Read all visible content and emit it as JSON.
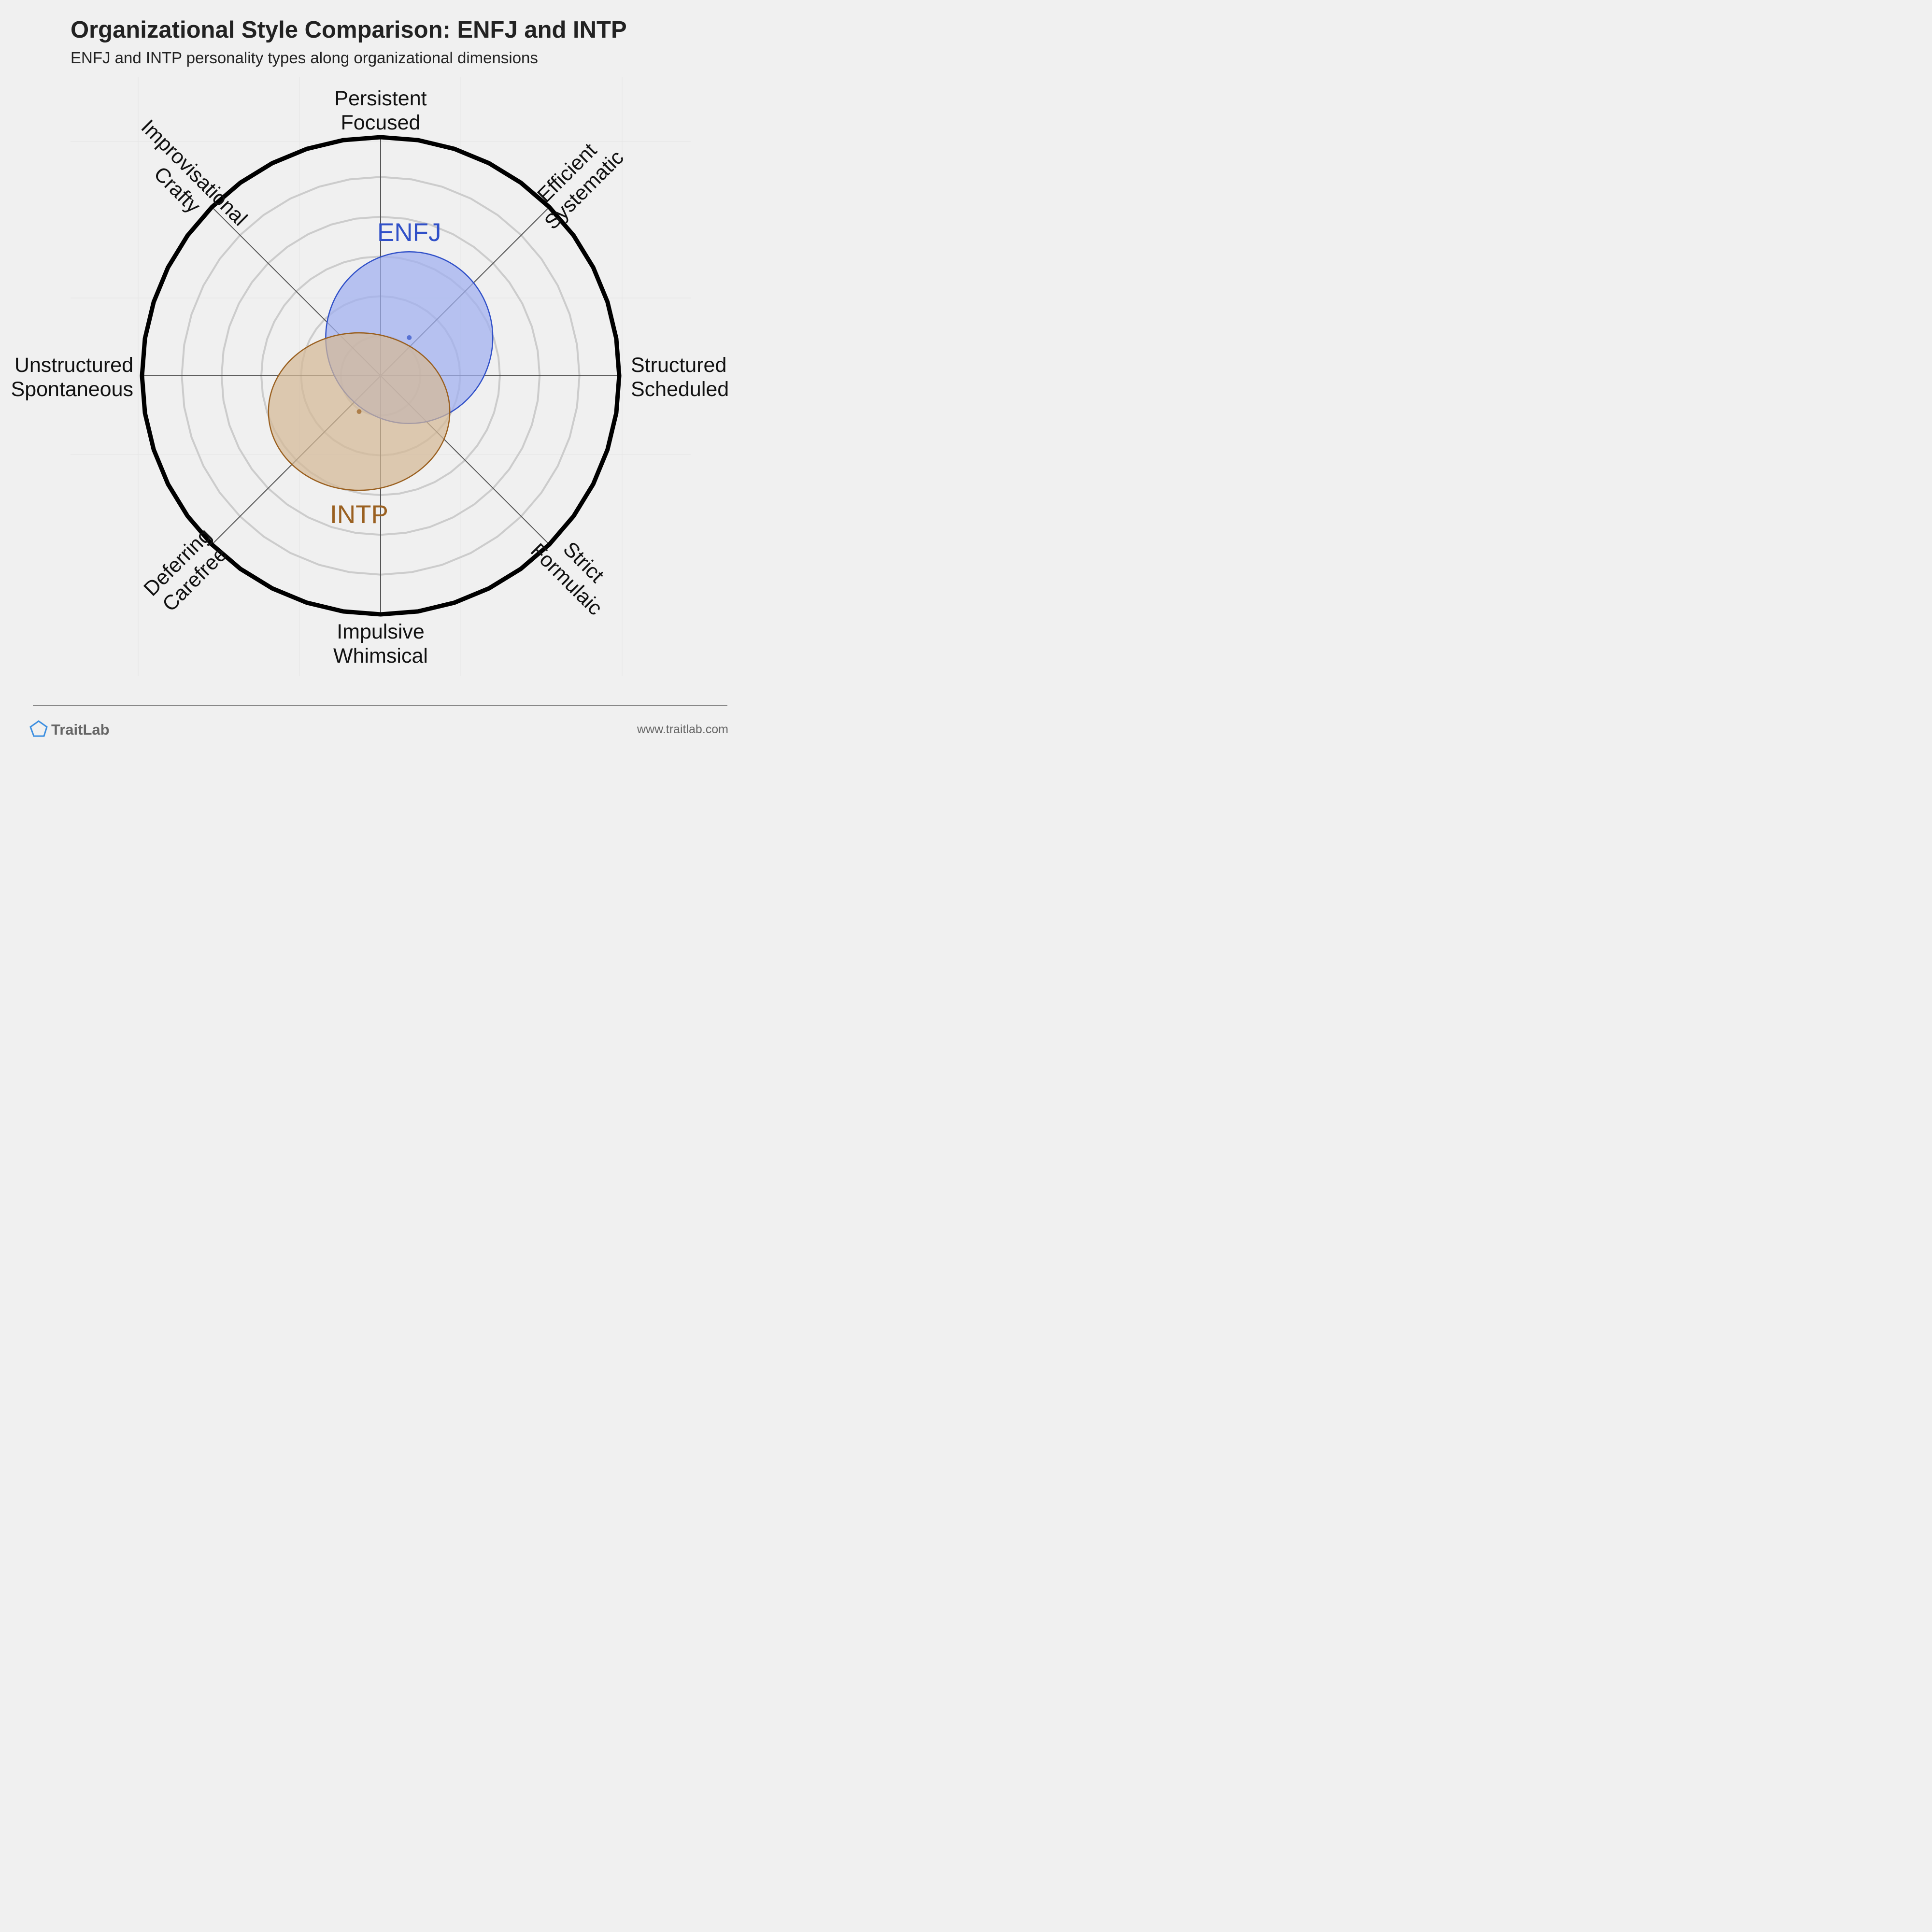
{
  "header": {
    "title": "Organizational Style Comparison: ENFJ and INTP",
    "subtitle": "ENFJ and INTP personality types along organizational dimensions"
  },
  "chart_data": {
    "type": "scatter",
    "rings": 6,
    "axes": [
      {
        "angle": 90,
        "lines": [
          "Persistent",
          "Focused"
        ]
      },
      {
        "angle": 45,
        "lines": [
          "Efficient",
          "Systematic"
        ]
      },
      {
        "angle": 0,
        "lines": [
          "Structured",
          "Scheduled"
        ]
      },
      {
        "angle": -45,
        "lines": [
          "Strict",
          "Formulaic"
        ]
      },
      {
        "angle": -90,
        "lines": [
          "Impulsive",
          "Whimsical"
        ]
      },
      {
        "angle": -135,
        "lines": [
          "Deferring",
          "Carefree"
        ]
      },
      {
        "angle": 180,
        "lines": [
          "Unstructured",
          "Spontaneous"
        ]
      },
      {
        "angle": 135,
        "lines": [
          "Improvisational",
          "Crafty"
        ]
      }
    ],
    "series": [
      {
        "name": "ENFJ",
        "x": 0.12,
        "y": 0.16,
        "rx": 0.35,
        "ry": 0.36,
        "color": "#3050c8",
        "fill": "#a0aff0"
      },
      {
        "name": "INTP",
        "x": -0.09,
        "y": -0.15,
        "rx": 0.38,
        "ry": 0.33,
        "color": "#9a6020",
        "fill": "#d4b896"
      }
    ]
  },
  "footer": {
    "brand": "TraitLab",
    "url": "www.traitlab.com"
  },
  "colors": {
    "background": "#f0f0f0",
    "rim": "#000000",
    "ring": "#cccccc",
    "spoke": "#555555",
    "brand_icon": "#3b8ee0"
  }
}
